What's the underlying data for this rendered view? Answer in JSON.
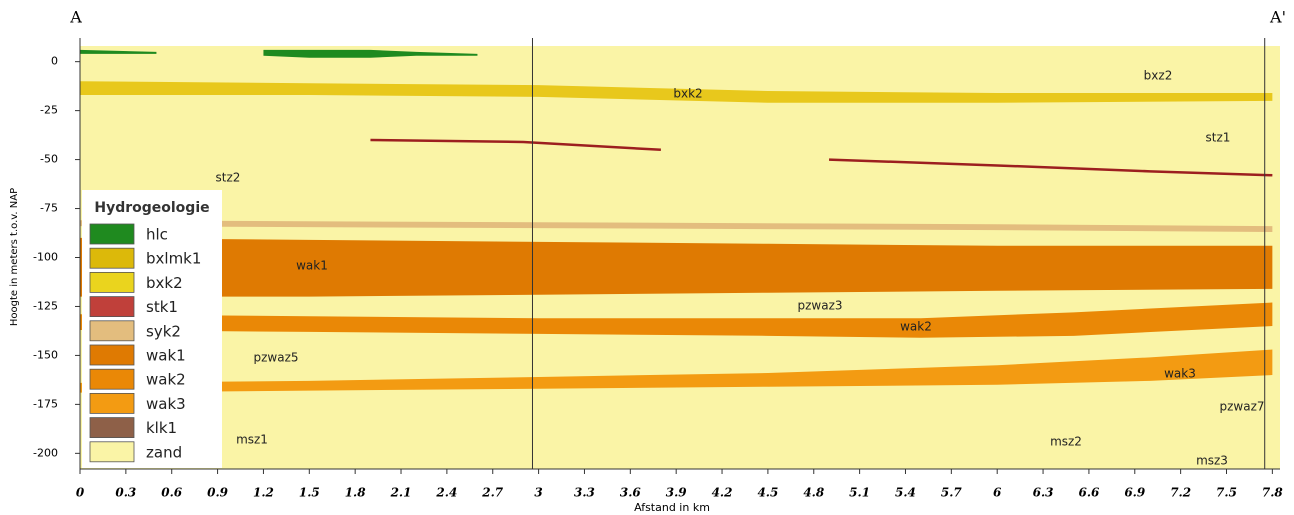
{
  "chart_data": {
    "type": "cross-section",
    "start_label": "A",
    "end_label": "A'",
    "x_label": "Afstand in km",
    "y_label": "Hoogte in meters t.o.v. NAP",
    "xlim": [
      0,
      7.85
    ],
    "ylim": [
      -208,
      8
    ],
    "xticks": [
      0,
      0.3,
      0.6,
      0.9,
      1.2,
      1.5,
      1.8,
      2.1,
      2.4,
      2.7,
      3,
      3.3,
      3.6,
      3.9,
      4.2,
      4.5,
      4.8,
      5.1,
      5.4,
      5.7,
      6,
      6.3,
      6.6,
      6.9,
      7.2,
      7.5,
      7.8
    ],
    "yticks": [
      0,
      -25,
      -50,
      -75,
      -100,
      -125,
      -150,
      -175,
      -200
    ],
    "section_lines": [
      2.96,
      7.75
    ],
    "background_color": "#faf4a6",
    "layers": [
      {
        "name": "hlc",
        "color": "#1f8a1f",
        "x": [
          0,
          0.5
        ],
        "top": [
          6,
          5
        ],
        "bottom": [
          4,
          4
        ]
      },
      {
        "name": "hlc",
        "color": "#1f8a1f",
        "x": [
          1.2,
          1.5,
          1.9,
          2.2,
          2.6
        ],
        "top": [
          6,
          6,
          6,
          5,
          4
        ],
        "bottom": [
          3,
          2,
          2,
          3,
          3
        ]
      },
      {
        "name": "bxk2",
        "color": "#e8c81c",
        "x": [
          0,
          1.5,
          3,
          4.5,
          6,
          7.8
        ],
        "top": [
          -10,
          -11,
          -12,
          -15,
          -16,
          -16
        ],
        "bottom": [
          -17,
          -17,
          -18,
          -21,
          -21,
          -20
        ]
      },
      {
        "name": "syk2",
        "color": "#e3bd7e",
        "x": [
          0,
          3,
          6,
          7.8
        ],
        "top": [
          -81,
          -82,
          -83,
          -84
        ],
        "bottom": [
          -84,
          -85,
          -86,
          -87
        ]
      },
      {
        "name": "wak1",
        "color": "#df7a02",
        "x": [
          0,
          1.5,
          3,
          4.5,
          6,
          7.8
        ],
        "top": [
          -90,
          -91,
          -92,
          -93,
          -94,
          -94
        ],
        "bottom": [
          -120,
          -120,
          -119,
          -118,
          -117,
          -116
        ]
      },
      {
        "name": "wak2",
        "color": "#ea8806",
        "x": [
          0,
          1.5,
          3,
          4.5,
          5.5,
          6.5,
          7.8
        ],
        "top": [
          -129,
          -130,
          -131,
          -131,
          -131,
          -128,
          -123
        ],
        "bottom": [
          -137,
          -138,
          -139,
          -140,
          -141,
          -140,
          -135
        ]
      },
      {
        "name": "wak3",
        "color": "#f39b12",
        "x": [
          0,
          1.5,
          3,
          4.5,
          6,
          7,
          7.8
        ],
        "top": [
          -164,
          -163,
          -161,
          -159,
          -155,
          -151,
          -147
        ],
        "bottom": [
          -169,
          -168,
          -167,
          -166,
          -165,
          -163,
          -160
        ]
      }
    ],
    "lines": [
      {
        "name": "stk1",
        "color": "#9c1f1f",
        "x": [
          1.9,
          2.9,
          3.8
        ],
        "values": [
          -40,
          -41,
          -45
        ]
      },
      {
        "name": "stk1",
        "color": "#9c1f1f",
        "x": [
          4.9,
          6,
          7,
          7.8
        ],
        "values": [
          -50,
          -53,
          -56,
          -58
        ]
      }
    ],
    "unit_labels": [
      "bxz2",
      "bxk2",
      "stz1",
      "stz2",
      "wak1",
      "pzwaz3",
      "wak2",
      "pzwaz5",
      "wak3",
      "pzwaz7",
      "msz1",
      "msz2",
      "msz3"
    ],
    "legend": {
      "title": "Hydrogeologie",
      "items": [
        {
          "name": "hlc",
          "color": "#1f8a1f"
        },
        {
          "name": "bxlmk1",
          "color": "#dcb90a"
        },
        {
          "name": "bxk2",
          "color": "#ead41e"
        },
        {
          "name": "stk1",
          "color": "#c0403a"
        },
        {
          "name": "syk2",
          "color": "#e3bd7e"
        },
        {
          "name": "wak1",
          "color": "#df7a02"
        },
        {
          "name": "wak2",
          "color": "#ea8806"
        },
        {
          "name": "wak3",
          "color": "#f39b12"
        },
        {
          "name": "klk1",
          "color": "#8e6048"
        },
        {
          "name": "zand",
          "color": "#faf4a6"
        }
      ]
    }
  }
}
